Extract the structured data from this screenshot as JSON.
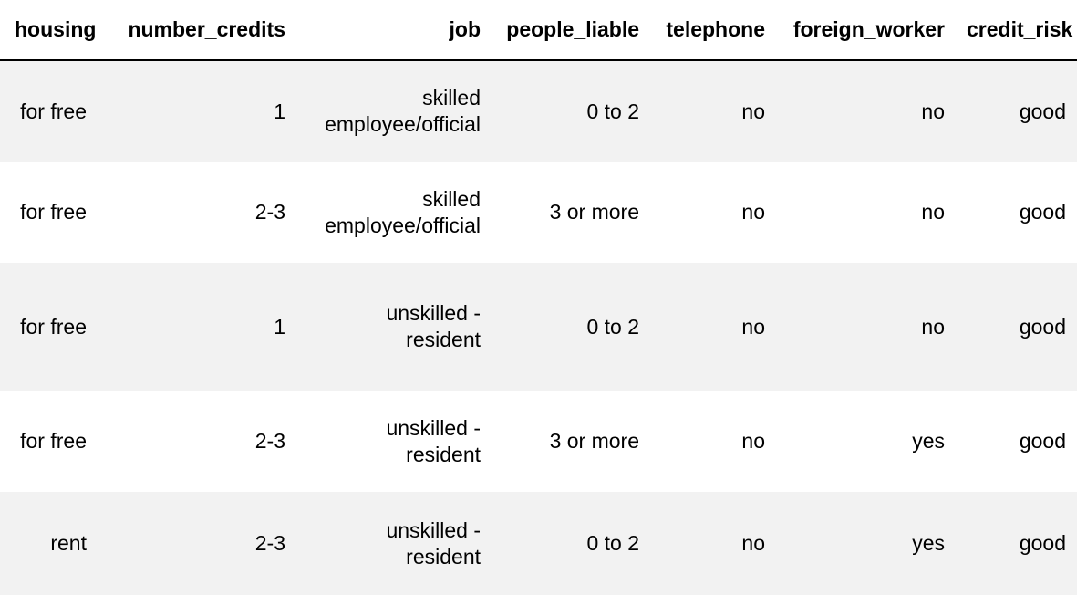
{
  "table": {
    "columns": [
      "housing",
      "number_credits",
      "job",
      "people_liable",
      "telephone",
      "foreign_worker",
      "credit_risk"
    ],
    "rows": [
      {
        "housing": "for free",
        "number_credits": "1",
        "job_line1": "skilled",
        "job_line2": "employee/official",
        "people_liable": "0 to 2",
        "telephone": "no",
        "foreign_worker": "no",
        "credit_risk": "good"
      },
      {
        "housing": "for free",
        "number_credits": "2-3",
        "job_line1": "skilled",
        "job_line2": "employee/official",
        "people_liable": "3 or more",
        "telephone": "no",
        "foreign_worker": "no",
        "credit_risk": "good"
      },
      {
        "housing": "for free",
        "number_credits": "1",
        "job_line1": "unskilled -",
        "job_line2": "resident",
        "people_liable": "0 to 2",
        "telephone": "no",
        "foreign_worker": "no",
        "credit_risk": "good"
      },
      {
        "housing": "for free",
        "number_credits": "2-3",
        "job_line1": "unskilled -",
        "job_line2": "resident",
        "people_liable": "3 or more",
        "telephone": "no",
        "foreign_worker": "yes",
        "credit_risk": "good"
      },
      {
        "housing": "rent",
        "number_credits": "2-3",
        "job_line1": "unskilled -",
        "job_line2": "resident",
        "people_liable": "0 to 2",
        "telephone": "no",
        "foreign_worker": "yes",
        "credit_risk": "good"
      }
    ]
  },
  "colors": {
    "striped_row": "#f2f2f2",
    "plain_row": "#ffffff",
    "header_rule": "#000000"
  }
}
